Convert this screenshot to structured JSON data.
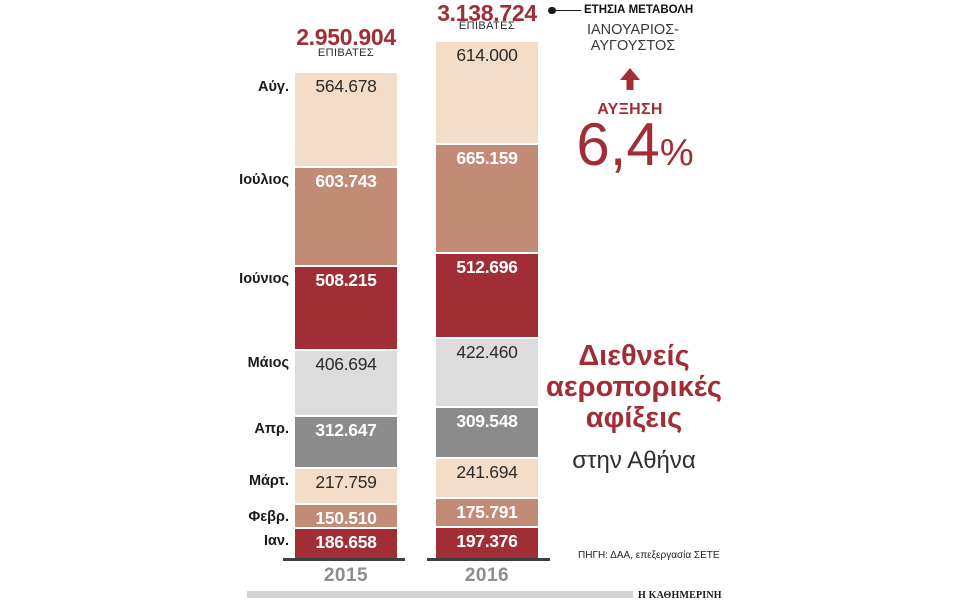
{
  "chart_data": {
    "type": "bar",
    "stacked": true,
    "title_lines": [
      "Διεθνείς",
      "αεροπορικές",
      "αφίξεις"
    ],
    "subtitle": "στην Αθήνα",
    "unit_label": "ΕΠΙΒΑΤΕΣ",
    "categories": [
      "Ιαν.",
      "Φεβρ.",
      "Μάρτ.",
      "Απρ.",
      "Μάιος",
      "Ιούνιος",
      "Ιούλιος",
      "Αύγ."
    ],
    "series": [
      {
        "name": "2015",
        "total": 2950904,
        "total_display": "2.950.904",
        "values": [
          186658,
          150510,
          217759,
          312647,
          406694,
          508215,
          603743,
          564678
        ],
        "display": [
          "186.658",
          "150.510",
          "217.759",
          "312.647",
          "406.694",
          "508.215",
          "603.743",
          "564.678"
        ]
      },
      {
        "name": "2016",
        "total": 3138724,
        "total_display": "3.138.724",
        "values": [
          197376,
          175791,
          241694,
          309548,
          422460,
          512696,
          665159,
          614000
        ],
        "display": [
          "197.376",
          "175.791",
          "241.694",
          "309.548",
          "422.460",
          "512.696",
          "665.159",
          "614.000"
        ]
      }
    ],
    "segment_colors": [
      "#a12d35",
      "#c18b76",
      "#f3ddc9",
      "#8b8b8b",
      "#dcdcdc",
      "#a12d35",
      "#c18b76",
      "#f3ddc9"
    ],
    "segment_text_colors": [
      "#ffffff",
      "#ffffff",
      "#2b2b2b",
      "#ffffff",
      "#2b2b2b",
      "#ffffff",
      "#ffffff",
      "#2b2b2b"
    ],
    "accent_color": "#a12d35",
    "annotation": {
      "heading": "ΕΤΗΣΙΑ ΜΕΤΑΒΟΛΗ",
      "period_line1": "ΙΑΝΟΥΑΡΙΟΣ-",
      "period_line2": "ΑΥΓΟΥΣΤΟΣ",
      "increase_label": "ΑΥΞΗΣΗ",
      "pct_value": "6,4",
      "pct_sign": "%"
    },
    "footer": {
      "source": "ΠΗΓΗ: ΔΑΑ, επεξεργασία ΣΕΤΕ",
      "brand": "Η ΚΑΘΗΜΕΡΙΝΗ"
    }
  }
}
